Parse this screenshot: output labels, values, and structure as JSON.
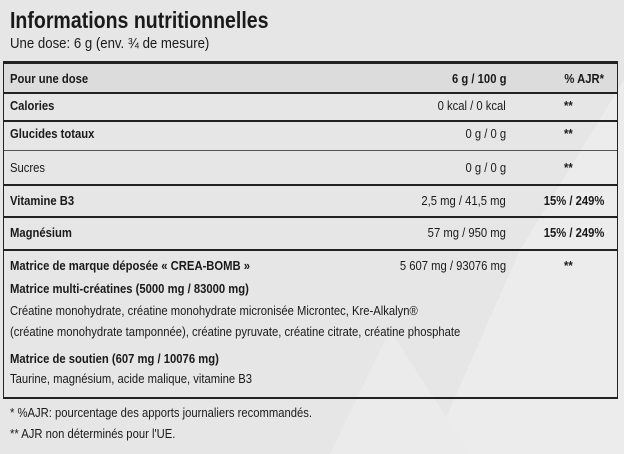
{
  "header": {
    "title": "Informations nutritionnelles",
    "subtitle": "Une dose: 6 g (env. ¾ de mesure)"
  },
  "table": {
    "columns": [
      "Pour une dose",
      "6 g / 100 g",
      "% AJR*"
    ],
    "rows": [
      [
        "Calories",
        "0 kcal / 0 kcal",
        "**"
      ],
      [
        "Glucides totaux",
        "0 g / 0 g",
        "**"
      ],
      [
        "Sucres",
        "0 g / 0 g",
        "**"
      ],
      [
        "Vitamine B3",
        "2,5 mg / 41,5 mg",
        "15% / 249%"
      ],
      [
        "Magnésium",
        "57 mg / 950 mg",
        "15% / 249%"
      ]
    ]
  },
  "matrix": {
    "name": "Matrice de marque déposée « CREA-BOMB »",
    "amount": "5 607 mg / 93076 mg",
    "ajr": "**",
    "groups": [
      {
        "title": "Matrice multi-créatines (5000 mg / 83000 mg)",
        "lines": [
          "Créatine monohydrate, créatine monohydrate micronisée Microntec, Kre-Alkalyn®",
          "(créatine monohydrate tamponnée), créatine pyruvate, créatine citrate, créatine phosphate"
        ]
      },
      {
        "title": "Matrice de soutien (607 mg / 10076 mg)",
        "lines": [
          "Taurine, magnésium, acide malique, vitamine B3"
        ]
      }
    ]
  },
  "footnotes": [
    "* %AJR: pourcentage des apports journaliers recommandés.",
    "** AJR non déterminés pour l'UE."
  ]
}
